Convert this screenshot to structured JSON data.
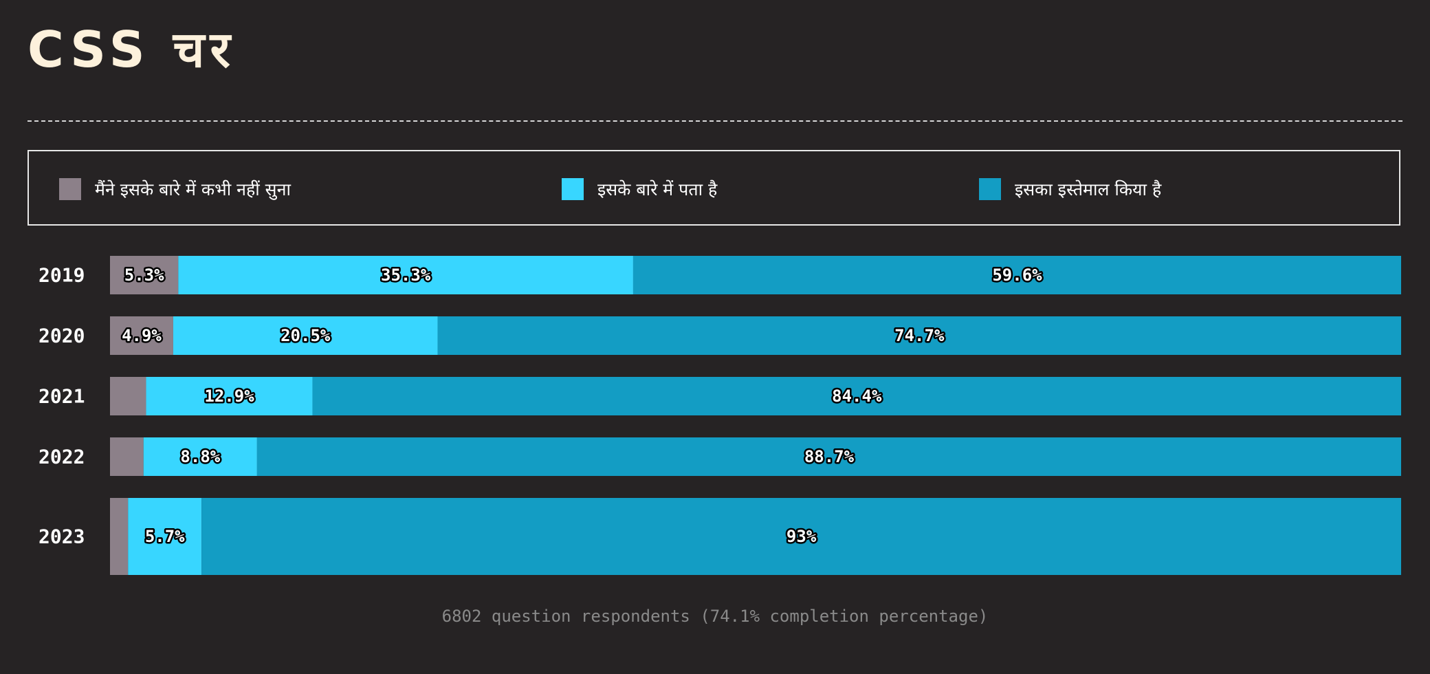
{
  "title": "CSS चर",
  "legend": {
    "items": [
      {
        "label": "मैंने इसके बारे में कभी नहीं सुना",
        "color": "#8c8089"
      },
      {
        "label": "इसके बारे में पता है",
        "color": "#38d6ff"
      },
      {
        "label": "इसका इस्तेमाल किया है",
        "color": "#139dc4"
      }
    ]
  },
  "chart_data": {
    "type": "bar",
    "orientation": "horizontal",
    "stacked": true,
    "title": "CSS चर",
    "categories": [
      "2019",
      "2020",
      "2021",
      "2022",
      "2023"
    ],
    "series": [
      {
        "name": "मैंने इसके बारे में कभी नहीं सुना",
        "color": "#8c8089",
        "values": [
          5.3,
          4.9,
          2.8,
          2.6,
          1.4
        ],
        "labels": [
          "5.3%",
          "4.9%",
          "",
          "",
          ""
        ]
      },
      {
        "name": "इसके बारे में पता है",
        "color": "#38d6ff",
        "values": [
          35.3,
          20.5,
          12.9,
          8.8,
          5.7
        ],
        "labels": [
          "35.3%",
          "20.5%",
          "12.9%",
          "8.8%",
          "5.7%"
        ]
      },
      {
        "name": "इसका इस्तेमाल किया है",
        "color": "#139dc4",
        "values": [
          59.6,
          74.7,
          84.4,
          88.7,
          93
        ],
        "labels": [
          "59.6%",
          "74.7%",
          "84.4%",
          "88.7%",
          "93%"
        ]
      }
    ],
    "xlim": [
      0,
      100
    ],
    "legend_position": "top"
  },
  "footnote": "6802 question respondents (74.1% completion percentage)"
}
